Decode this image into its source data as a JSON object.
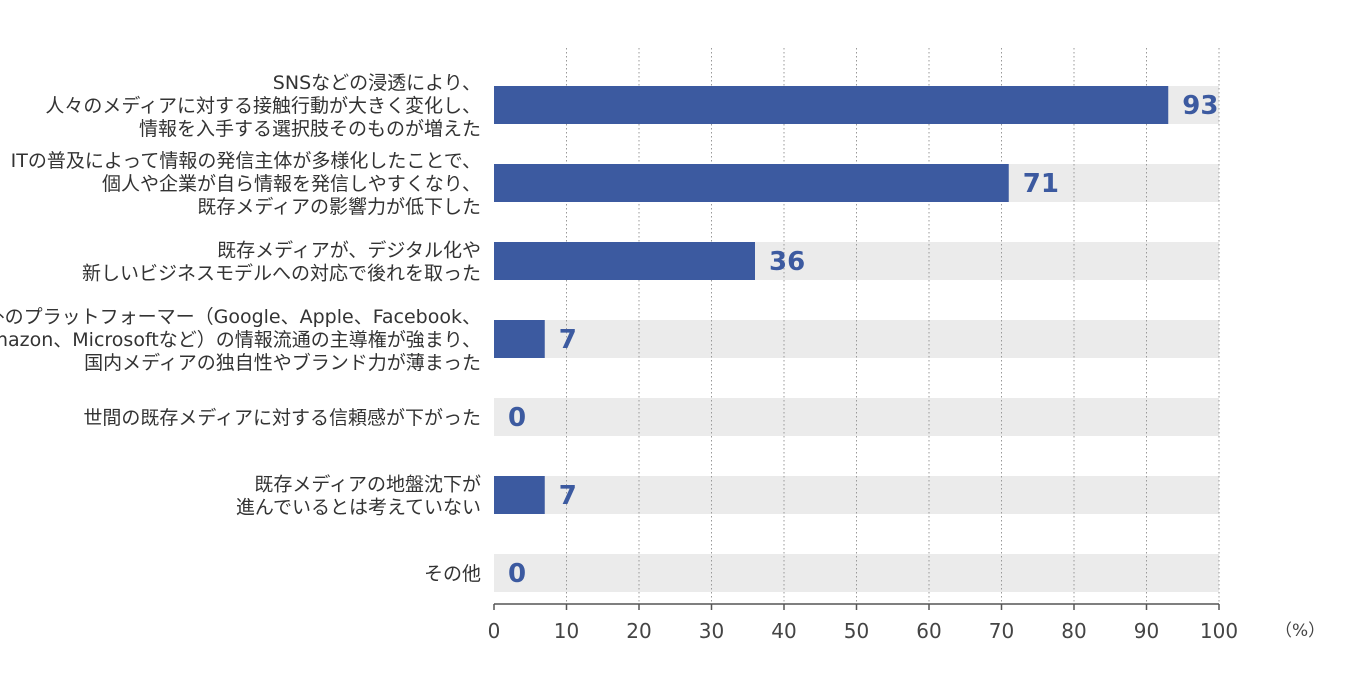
{
  "chart_data": {
    "type": "bar",
    "orientation": "horizontal",
    "categories": [
      [
        "SNSなどの浸透により、",
        "人々のメディアに対する接触行動が大きく変化し、",
        "情報を入手する選択肢そのものが増えた"
      ],
      [
        "ITの普及によって情報の発信主体が多様化したことで、",
        "個人や企業が自ら情報を発信しやすくなり、",
        "既存メディアの影響力が低下した"
      ],
      [
        "既存メディアが、デジタル化や",
        "新しいビジネスモデルへの対応で後れを取った"
      ],
      [
        "海外のプラットフォーマー（Google、Apple、Facebook、",
        "Amazon、Microsoftなど）の情報流通の主導権が強まり、",
        "国内メディアの独自性やブランド力が薄まった"
      ],
      [
        "世間の既存メディアに対する信頼感が下がった"
      ],
      [
        "既存メディアの地盤沈下が",
        "進んでいるとは考えていない"
      ],
      [
        "その他"
      ]
    ],
    "values": [
      93,
      71,
      36,
      7,
      0,
      7,
      0
    ],
    "value_labels": [
      "93",
      "71",
      "36",
      "7",
      "0",
      "7",
      "0"
    ],
    "xlim": [
      0,
      100
    ],
    "x_ticks": [
      "0",
      "10",
      "20",
      "30",
      "40",
      "50",
      "60",
      "70",
      "80",
      "90",
      "100"
    ],
    "unit": "（%）",
    "grid": "vertical dotted",
    "colors": {
      "bar": "#3c5aa0",
      "track": "#ebebeb",
      "value_text": "#3c5aa0",
      "grid": "#999999"
    }
  }
}
